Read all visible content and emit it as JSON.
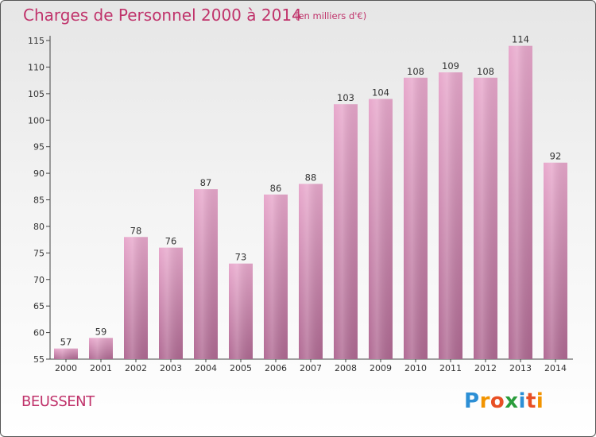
{
  "header": {
    "title": "Charges de Personnel 2000 à 2014",
    "subtitle": "(en milliers d'€)"
  },
  "footer": {
    "commune": "BEUSSENT",
    "logo": "Proxiti"
  },
  "colors": {
    "title": "#c0336b",
    "bar_light": "#e8a8cc",
    "bar_dark": "#b06a93"
  },
  "chart_data": {
    "type": "bar",
    "title": "Charges de Personnel 2000 à 2014",
    "subtitle": "(en milliers d'€)",
    "xlabel": "",
    "ylabel": "",
    "categories": [
      "2000",
      "2001",
      "2002",
      "2003",
      "2004",
      "2005",
      "2006",
      "2007",
      "2008",
      "2009",
      "2010",
      "2011",
      "2012",
      "2013",
      "2014"
    ],
    "values": [
      57,
      59,
      78,
      76,
      87,
      73,
      86,
      88,
      103,
      104,
      108,
      109,
      108,
      114,
      92
    ],
    "ylim": [
      55,
      115
    ],
    "yticks": [
      55,
      60,
      65,
      70,
      75,
      80,
      85,
      90,
      95,
      100,
      105,
      110,
      115
    ],
    "grid": false,
    "legend": "none"
  }
}
